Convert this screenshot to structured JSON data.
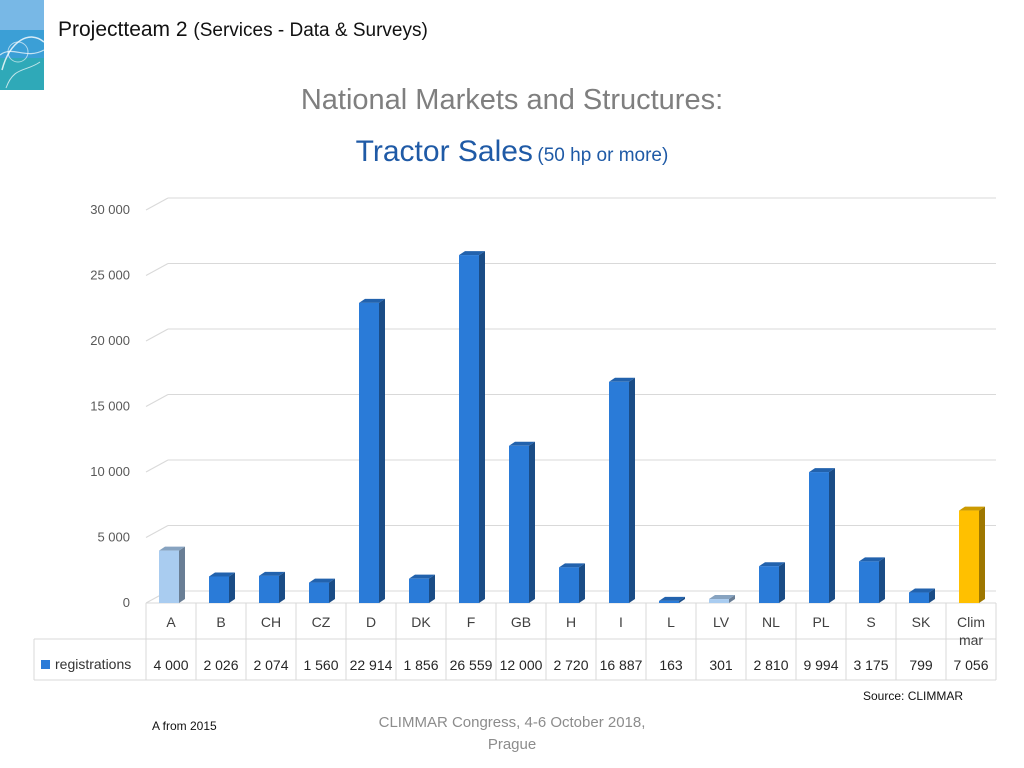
{
  "header": {
    "team": "Projectteam 2",
    "team_sub": "(Services - Data & Surveys)"
  },
  "main_title": "National Markets and Structures:",
  "chart_title": {
    "main": "Tractor Sales",
    "sub": "(50 hp or more)"
  },
  "source": "Source: CLIMMAR",
  "footnote": "A from 2015",
  "footer": {
    "line1": "CLIMMAR Congress, 4-6 October 2018,",
    "line2": "Prague"
  },
  "colors": {
    "bar": "#2a7bd8",
    "bar_highlight_light": "#a9ccf0",
    "bar_highlight_gold": "#ffc000",
    "grid": "#d9d9d9"
  },
  "logo_icon": "climmar-globe-logo",
  "chart_data": {
    "type": "bar",
    "categories": [
      "A",
      "B",
      "CH",
      "CZ",
      "D",
      "DK",
      "F",
      "GB",
      "H",
      "I",
      "L",
      "LV",
      "NL",
      "PL",
      "S",
      "SK",
      "Clim mar"
    ],
    "category_lines": [
      [
        "A"
      ],
      [
        "B"
      ],
      [
        "CH"
      ],
      [
        "CZ"
      ],
      [
        "D"
      ],
      [
        "DK"
      ],
      [
        "F"
      ],
      [
        "GB"
      ],
      [
        "H"
      ],
      [
        "I"
      ],
      [
        "L"
      ],
      [
        "LV"
      ],
      [
        "NL"
      ],
      [
        "PL"
      ],
      [
        "S"
      ],
      [
        "SK"
      ],
      [
        "Clim",
        "mar"
      ]
    ],
    "series": [
      {
        "name": "registrations",
        "values": [
          4000,
          2026,
          2074,
          1560,
          22914,
          1856,
          26559,
          12000,
          2720,
          16887,
          163,
          301,
          2810,
          9994,
          3175,
          799,
          7056
        ]
      }
    ],
    "value_labels": [
      "4 000",
      "2 026",
      "2 074",
      "1 560",
      "22 914",
      "1 856",
      "26 559",
      "12 000",
      "2 720",
      "16 887",
      "163",
      "301",
      "2 810",
      "9 994",
      "3 175",
      "799",
      "7 056"
    ],
    "highlight": {
      "A": "light",
      "LV": "light",
      "Clim mar": "gold"
    },
    "ylim": [
      0,
      30000
    ],
    "yticks": [
      0,
      5000,
      10000,
      15000,
      20000,
      25000,
      30000
    ],
    "ytick_labels": [
      "0",
      "5 000",
      "10 000",
      "15 000",
      "20 000",
      "25 000",
      "30 000"
    ],
    "grid": true,
    "style": "3d-column",
    "data_table": true
  }
}
